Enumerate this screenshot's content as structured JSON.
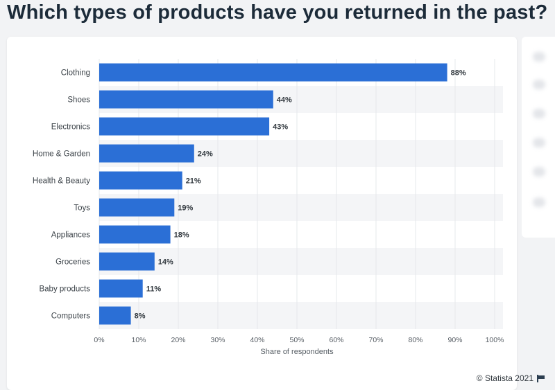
{
  "title": "Which types of products have you returned in the past?",
  "footer": {
    "credit": "© Statista 2021",
    "flag_icon": "flag-icon"
  },
  "chart_data": {
    "type": "bar",
    "orientation": "horizontal",
    "categories": [
      "Clothing",
      "Shoes",
      "Electronics",
      "Home & Garden",
      "Health & Beauty",
      "Toys",
      "Appliances",
      "Groceries",
      "Baby products",
      "Computers"
    ],
    "values": [
      88,
      44,
      43,
      24,
      21,
      19,
      18,
      14,
      11,
      8
    ],
    "value_labels": [
      "88%",
      "44%",
      "43%",
      "24%",
      "21%",
      "19%",
      "18%",
      "14%",
      "11%",
      "8%"
    ],
    "xlabel": "Share of respondents",
    "ylabel": "",
    "xlim": [
      0,
      100
    ],
    "xticks": [
      "0%",
      "10%",
      "20%",
      "30%",
      "40%",
      "50%",
      "60%",
      "70%",
      "80%",
      "90%",
      "100%"
    ],
    "grid": true,
    "bar_color": "#2b6fd6",
    "stripe_color": "#f4f5f7"
  }
}
